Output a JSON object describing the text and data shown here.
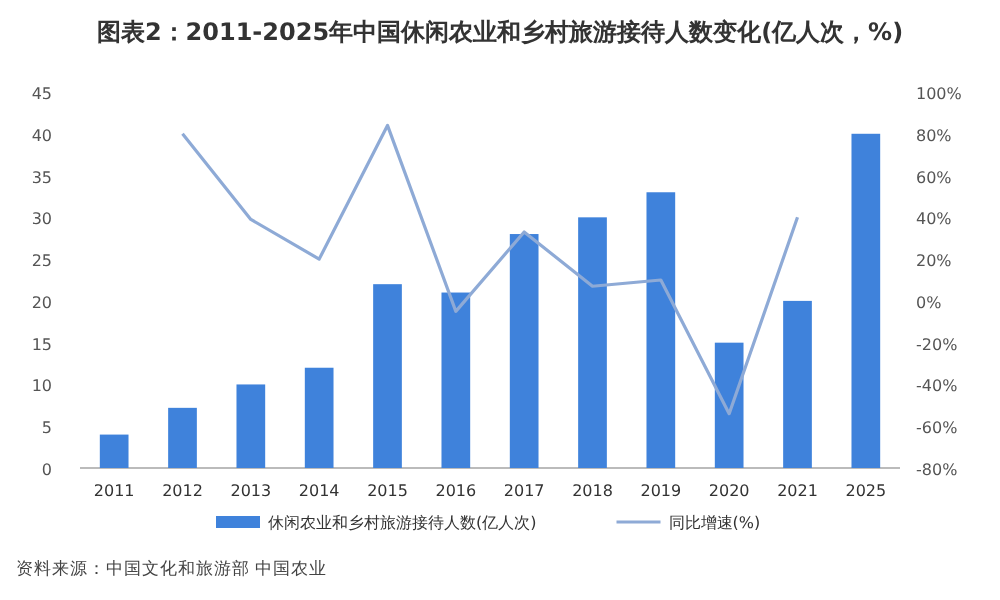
{
  "chart_data": {
    "type": "bar",
    "title": "图表2：2011-2025年中国休闲农业和乡村旅游接待人数变化(亿人次，%)",
    "categories": [
      "2011",
      "2012",
      "2013",
      "2014",
      "2015",
      "2016",
      "2017",
      "2018",
      "2019",
      "2020",
      "2021",
      "2025"
    ],
    "series": [
      {
        "name": "休闲农业和乡村旅游接待人数(亿人次)",
        "color": "#3f82db",
        "values": [
          4,
          7.2,
          10,
          12,
          22,
          21,
          28,
          30,
          33,
          15,
          20,
          40
        ]
      },
      {
        "name": "同比增速(%)",
        "type": "line",
        "axis": "y2",
        "color": "#8eaad6",
        "values": [
          null,
          80,
          39,
          20,
          84,
          -5,
          33,
          7,
          10,
          -54,
          40,
          null
        ]
      }
    ],
    "ylim": [
      0,
      45
    ],
    "yticks": [
      0,
      5,
      10,
      15,
      20,
      25,
      30,
      35,
      40,
      45
    ],
    "y2lim": [
      -80,
      100
    ],
    "y2ticks": [
      {
        "value": -80,
        "label": "-80%"
      },
      {
        "value": -60,
        "label": "-60%"
      },
      {
        "value": -40,
        "label": "-40%"
      },
      {
        "value": -20,
        "label": "-20%"
      },
      {
        "value": 0,
        "label": "0%"
      },
      {
        "value": 20,
        "label": "20%"
      },
      {
        "value": 40,
        "label": "40%"
      },
      {
        "value": 60,
        "label": "60%"
      },
      {
        "value": 80,
        "label": "80%"
      },
      {
        "value": 100,
        "label": "100%"
      }
    ],
    "legend": "bottom",
    "annotations": [
      "资料来源：中国文化和旅游部 中国农业"
    ]
  }
}
